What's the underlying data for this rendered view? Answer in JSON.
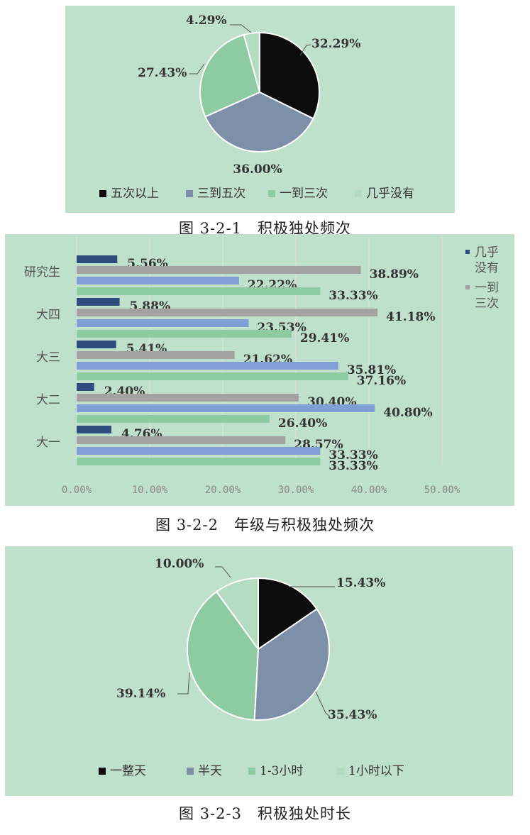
{
  "captions": {
    "c1": "图 3-2-1　积极独处频次",
    "c2": "图 3-2-2　年级与积极独处频次",
    "c3": "图 3-2-3　积极独处时长"
  },
  "chart_data": [
    {
      "type": "pie",
      "categories": [
        "五次以上",
        "三到五次",
        "一到三次",
        "几乎没有"
      ],
      "values": [
        32.29,
        36.0,
        27.43,
        4.29
      ],
      "labels": [
        "32.29%",
        "36.00%",
        "27.43%",
        "4.29%"
      ],
      "colors": [
        "#0c0c0c",
        "#7d90a8",
        "#8fcba2",
        "#b3dcc0"
      ],
      "legend": "bottom"
    },
    {
      "type": "bar",
      "orientation": "horizontal",
      "categories": [
        "研究生",
        "大四",
        "大三",
        "大二",
        "大一"
      ],
      "series": [
        {
          "name": "几乎没有",
          "values": [
            5.56,
            5.88,
            5.41,
            2.4,
            4.76
          ],
          "labels": [
            "5.56%",
            "5.88%",
            "5.41%",
            "2.40%",
            "4.76%"
          ],
          "color": "#2e4c7e"
        },
        {
          "name": "一到三次",
          "values": [
            38.89,
            41.18,
            21.62,
            30.4,
            28.57
          ],
          "labels": [
            "38.89%",
            "41.18%",
            "21.62%",
            "30.40%",
            "28.57%"
          ],
          "color": "#a2a2a2"
        },
        {
          "values": [
            22.22,
            23.53,
            35.81,
            40.8,
            33.33
          ],
          "labels": [
            "22.22%",
            "23.53%",
            "35.81%",
            "40.80%",
            "33.33%"
          ],
          "color": "#7f9fd6"
        },
        {
          "values": [
            33.33,
            29.41,
            37.16,
            26.4,
            33.33
          ],
          "labels": [
            "33.33%",
            "29.41%",
            "37.16%",
            "26.40%",
            "33.33%"
          ],
          "color": "#8fcba2"
        }
      ],
      "legend_lines": [
        [
          "几乎",
          "没有"
        ],
        [
          "一到",
          "三次"
        ]
      ],
      "xlim": [
        0,
        50
      ],
      "xticks": [
        "0.00%",
        "10.00%",
        "20.00%",
        "30.00%",
        "40.00%",
        "50.00%"
      ],
      "grid": true,
      "legend": "right"
    },
    {
      "type": "pie",
      "categories": [
        "一整天",
        "半天",
        "1-3小时",
        "1小时以下"
      ],
      "values": [
        15.43,
        35.43,
        39.14,
        10.0
      ],
      "labels": [
        "15.43%",
        "35.43%",
        "39.14%",
        "10.00%"
      ],
      "colors": [
        "#0c0c0c",
        "#7d90a8",
        "#8fcba2",
        "#b3dcc0"
      ],
      "legend": "bottom"
    }
  ]
}
